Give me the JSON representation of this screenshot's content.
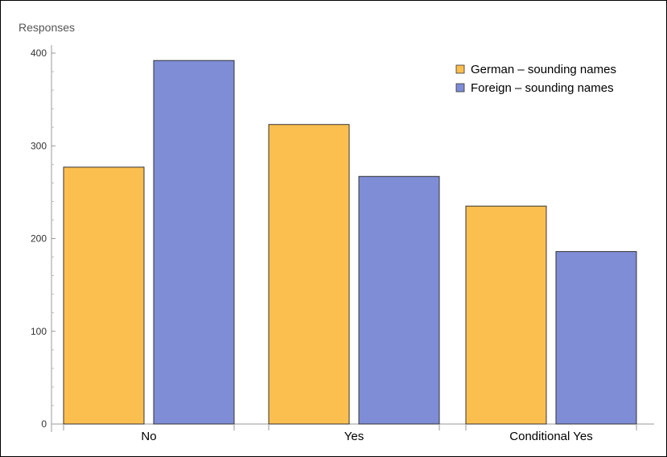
{
  "chart_data": {
    "type": "bar",
    "ylabel": "Responses",
    "categories": [
      "No",
      "Yes",
      "Conditional Yes"
    ],
    "series": [
      {
        "name": "German – sounding names",
        "values": [
          277,
          323,
          235
        ],
        "color": "#fbbf50"
      },
      {
        "name": "Foreign – sounding names",
        "values": [
          392,
          267,
          186
        ],
        "color": "#7f8dd6"
      }
    ],
    "ylim": [
      0,
      400
    ],
    "yticks": [
      0,
      100,
      200,
      300,
      400
    ],
    "grid": false,
    "legend_position": "top-right"
  }
}
